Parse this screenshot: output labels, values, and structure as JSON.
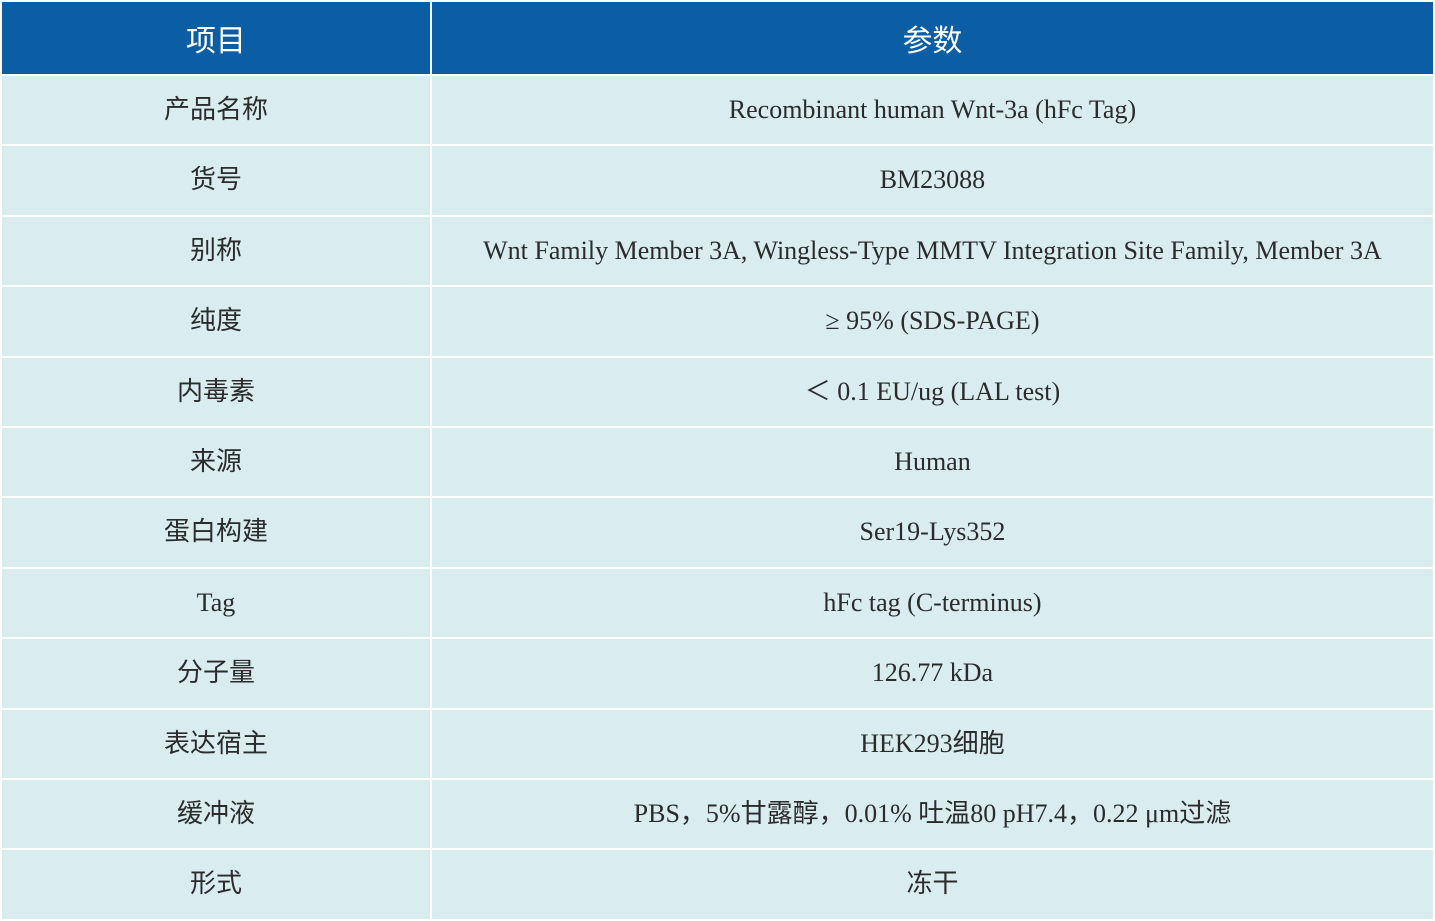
{
  "table": {
    "header_bg": "#0b5ea4",
    "header_fg": "#ffffff",
    "cell_bg": "#d9edef",
    "cell_fg": "#2b2b2b",
    "border_color": "#ffffff",
    "header_fontsize": 30,
    "cell_fontsize": 26,
    "col_widths_pct": [
      30,
      70
    ],
    "columns": [
      "项目",
      "参数"
    ],
    "rows": [
      [
        "产品名称",
        "Recombinant human Wnt-3a (hFc Tag)"
      ],
      [
        "货号",
        "BM23088"
      ],
      [
        "别称",
        "Wnt Family Member 3A, Wingless-Type MMTV Integration Site Family, Member 3A"
      ],
      [
        "纯度",
        "≥ 95% (SDS-PAGE)"
      ],
      [
        "内毒素",
        "＜ 0.1 EU/ug (LAL test)"
      ],
      [
        "来源",
        "Human"
      ],
      [
        "蛋白构建",
        "Ser19-Lys352"
      ],
      [
        "Tag",
        "hFc tag (C-terminus)"
      ],
      [
        "分子量",
        "126.77 kDa"
      ],
      [
        "表达宿主",
        "HEK293细胞"
      ],
      [
        "缓冲液",
        "PBS，5%甘露醇，0.01% 吐温80 pH7.4，0.22 μm过滤"
      ],
      [
        "形式",
        "冻干"
      ]
    ]
  }
}
